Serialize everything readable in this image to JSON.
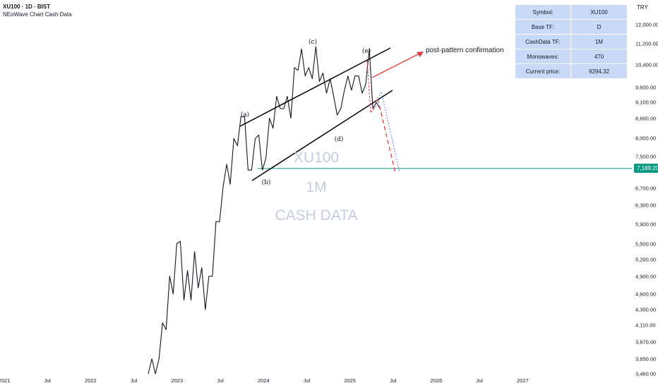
{
  "header": {
    "title": "XU100 · 1D · BIST",
    "subtitle": "NEoWave Chart Cash Data"
  },
  "currency": "TRY",
  "info_table": [
    {
      "label": "Symbol:",
      "value": "XU100"
    },
    {
      "label": "Base TF:",
      "value": "D"
    },
    {
      "label": "CashData TF:",
      "value": "1M"
    },
    {
      "label": "Monowaves:",
      "value": "470"
    },
    {
      "label": "Current price:",
      "value": "9294.32"
    }
  ],
  "watermark": {
    "line1": "XU100",
    "line2": "1M",
    "line3": "CASH DATA"
  },
  "price_tag": "7,189.20",
  "annotation": "post-pattern confirmation",
  "wave_labels": {
    "a": "(a)",
    "b": "(b)",
    "c": "(c)",
    "d": "(d)",
    "e": "(e)"
  },
  "colors": {
    "price_line": "#131722",
    "channel": "#000000",
    "support_line": "#089981",
    "projection_red": "#e53946",
    "projection_blue": "#2962ff",
    "table_bg": "#c9daf8",
    "watermark": "#c3cde0"
  },
  "chart_data": {
    "type": "line",
    "scale": "log",
    "ylim": [
      3460,
      13000
    ],
    "y_ticks": [
      "12,000.00",
      "11,200.00",
      "10,400.00",
      "9,600.00",
      "9,100.00",
      "8,600.00",
      "8,000.00",
      "7,500.00",
      "6,700.00",
      "6,300.00",
      "5,900.00",
      "5,500.00",
      "5,200.00",
      "4,900.00",
      "4,600.00",
      "4,350.00",
      "4,110.00",
      "3,870.00",
      "3,650.00",
      "3,460.00"
    ],
    "x_ticks": [
      "2021",
      "Jul",
      "2022",
      "Jul",
      "2023",
      "Jul",
      "2024",
      "Jul",
      "2025",
      "Jul",
      "2026",
      "Jul",
      "2027"
    ],
    "series": [
      {
        "values": [
          3460,
          3650,
          3460,
          3650,
          4150,
          4050,
          4900,
          4600,
          5500,
          5550,
          4500,
          5000,
          4500,
          5350,
          4700,
          5050,
          4350,
          4900,
          4900,
          5950,
          5950,
          6750,
          7300,
          6800,
          8000,
          7800,
          8650,
          8650,
          7150,
          7150,
          8000,
          8100,
          7150,
          7450,
          8600,
          8300,
          9300,
          8900,
          8900,
          9300,
          8600,
          10300,
          10200,
          11000,
          10000,
          10300,
          9900,
          11100,
          9800,
          10100,
          9400,
          9900,
          9300,
          8700,
          8900,
          9500,
          10000,
          9500,
          10000,
          10000,
          9400,
          9700,
          11000,
          8900,
          9100,
          8900
        ]
      }
    ],
    "support_level": 7189.2
  }
}
